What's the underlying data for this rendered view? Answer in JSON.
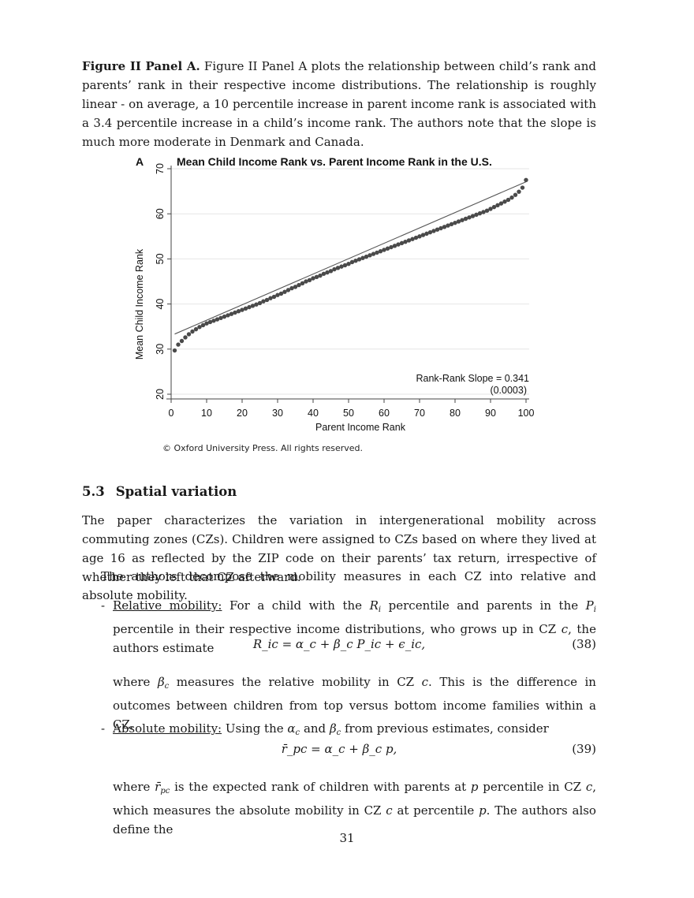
{
  "intro": {
    "heading": "Figure II Panel A.",
    "text": "Figure II Panel A plots the relationship between child’s rank and parents’ rank in their respective income distributions. The relationship is roughly linear - on average, a 10 percentile increase in parent income rank is associated with a 3.4 percentile increase in a child’s income rank. The authors note that the slope is much more moderate in Denmark and Canada."
  },
  "chart_data": {
    "type": "scatter",
    "panel_label": "A",
    "title": "Mean Child Income Rank vs. Parent Income Rank in the U.S.",
    "xlabel": "Parent Income Rank",
    "ylabel": "Mean Child Income Rank",
    "xlim": [
      0,
      100
    ],
    "ylim": [
      20,
      70
    ],
    "xticks": [
      0,
      10,
      20,
      30,
      40,
      50,
      60,
      70,
      80,
      90,
      100
    ],
    "yticks": [
      20,
      30,
      40,
      50,
      60,
      70
    ],
    "grid": "horizontal",
    "fit_line": {
      "intercept": 33.0,
      "slope": 0.341
    },
    "annotation_line1": "Rank-Rank Slope = 0.341",
    "annotation_line2": "(0.0003)",
    "points": [
      [
        1,
        29.7
      ],
      [
        2,
        31.0
      ],
      [
        3,
        31.8
      ],
      [
        4,
        32.6
      ],
      [
        5,
        33.3
      ],
      [
        6,
        33.9
      ],
      [
        7,
        34.4
      ],
      [
        8,
        34.9
      ],
      [
        9,
        35.3
      ],
      [
        10,
        35.7
      ],
      [
        11,
        36.0
      ],
      [
        12,
        36.3
      ],
      [
        13,
        36.6
      ],
      [
        14,
        36.9
      ],
      [
        15,
        37.2
      ],
      [
        16,
        37.5
      ],
      [
        17,
        37.8
      ],
      [
        18,
        38.1
      ],
      [
        19,
        38.4
      ],
      [
        20,
        38.7
      ],
      [
        21,
        39.0
      ],
      [
        22,
        39.3
      ],
      [
        23,
        39.6
      ],
      [
        24,
        39.9
      ],
      [
        25,
        40.2
      ],
      [
        26,
        40.6
      ],
      [
        27,
        40.9
      ],
      [
        28,
        41.3
      ],
      [
        29,
        41.6
      ],
      [
        30,
        42.0
      ],
      [
        31,
        42.3
      ],
      [
        32,
        42.7
      ],
      [
        33,
        43.1
      ],
      [
        34,
        43.5
      ],
      [
        35,
        43.8
      ],
      [
        36,
        44.2
      ],
      [
        37,
        44.6
      ],
      [
        38,
        45.0
      ],
      [
        39,
        45.3
      ],
      [
        40,
        45.7
      ],
      [
        41,
        46.0
      ],
      [
        42,
        46.3
      ],
      [
        43,
        46.7
      ],
      [
        44,
        47.0
      ],
      [
        45,
        47.3
      ],
      [
        46,
        47.7
      ],
      [
        47,
        48.0
      ],
      [
        48,
        48.3
      ],
      [
        49,
        48.6
      ],
      [
        50,
        48.9
      ],
      [
        51,
        49.3
      ],
      [
        52,
        49.6
      ],
      [
        53,
        49.9
      ],
      [
        54,
        50.2
      ],
      [
        55,
        50.5
      ],
      [
        56,
        50.8
      ],
      [
        57,
        51.1
      ],
      [
        58,
        51.4
      ],
      [
        59,
        51.7
      ],
      [
        60,
        52.0
      ],
      [
        61,
        52.3
      ],
      [
        62,
        52.6
      ],
      [
        63,
        52.9
      ],
      [
        64,
        53.2
      ],
      [
        65,
        53.5
      ],
      [
        66,
        53.8
      ],
      [
        67,
        54.1
      ],
      [
        68,
        54.4
      ],
      [
        69,
        54.7
      ],
      [
        70,
        55.0
      ],
      [
        71,
        55.3
      ],
      [
        72,
        55.6
      ],
      [
        73,
        55.9
      ],
      [
        74,
        56.2
      ],
      [
        75,
        56.5
      ],
      [
        76,
        56.8
      ],
      [
        77,
        57.1
      ],
      [
        78,
        57.4
      ],
      [
        79,
        57.7
      ],
      [
        80,
        58.0
      ],
      [
        81,
        58.3
      ],
      [
        82,
        58.6
      ],
      [
        83,
        58.9
      ],
      [
        84,
        59.2
      ],
      [
        85,
        59.5
      ],
      [
        86,
        59.8
      ],
      [
        87,
        60.1
      ],
      [
        88,
        60.4
      ],
      [
        89,
        60.7
      ],
      [
        90,
        61.1
      ],
      [
        91,
        61.5
      ],
      [
        92,
        61.9
      ],
      [
        93,
        62.3
      ],
      [
        94,
        62.7
      ],
      [
        95,
        63.1
      ],
      [
        96,
        63.6
      ],
      [
        97,
        64.2
      ],
      [
        98,
        64.9
      ],
      [
        99,
        65.8
      ],
      [
        100,
        67.5
      ]
    ]
  },
  "copyright": "© Oxford University Press. All rights reserved.",
  "section": {
    "number": "5.3",
    "title": "Spatial variation"
  },
  "para1": "The paper characterizes the variation in intergenerational mobility across commuting zones (CZs). Children were assigned to CZs based on where they lived at age 16 as reflected by the ZIP code on their parents’ tax return, irrespective of whether they left that CZ afterward.",
  "para2": "The authors decompose the mobility measures in each CZ into relative and absolute mobility.",
  "relative": {
    "dash": "-",
    "label": "Relative mobility:",
    "t1": "For a child with the",
    "v1": "R",
    "v1sub": "i",
    "t2": "percentile and parents in the",
    "v2": "P",
    "v2sub": "i",
    "t3": "percentile in their respective income distributions, who grows up in CZ",
    "v3": "c",
    "t4": ", the authors estimate",
    "equation": "R_ic = α_c + β_c P_ic + ϵ_ic,",
    "eqnum": "(38)",
    "after_v": "β",
    "after_vsub": "c",
    "after_t1": "measures the relative mobility in CZ",
    "after_v2": "c",
    "after_t2": ". This is the difference in outcomes between children from top versus bottom income families within a CZ.",
    "after_lead": "where"
  },
  "absolute": {
    "dash": "-",
    "label": "Absolute mobility:",
    "t1": "Using the",
    "v1": "α",
    "v1sub": "c",
    "t2": "and",
    "v2": "β",
    "v2sub": "c",
    "t3": "from previous estimates, consider",
    "equation": "r̄_pc = α_c + β_c p,",
    "eqnum": "(39)",
    "after_lead": "where",
    "after_v": "r̄",
    "after_vsub": "pc",
    "after_t1": "is the expected rank of children with parents at",
    "after_v2": "p",
    "after_t2": "percentile in CZ",
    "after_v3": "c",
    "after_t3": ", which measures the absolute mobility in CZ",
    "after_v4": "c",
    "after_t4": "at percentile",
    "after_v5": "p",
    "after_t5": ". The authors also define the"
  },
  "page_number": "31"
}
